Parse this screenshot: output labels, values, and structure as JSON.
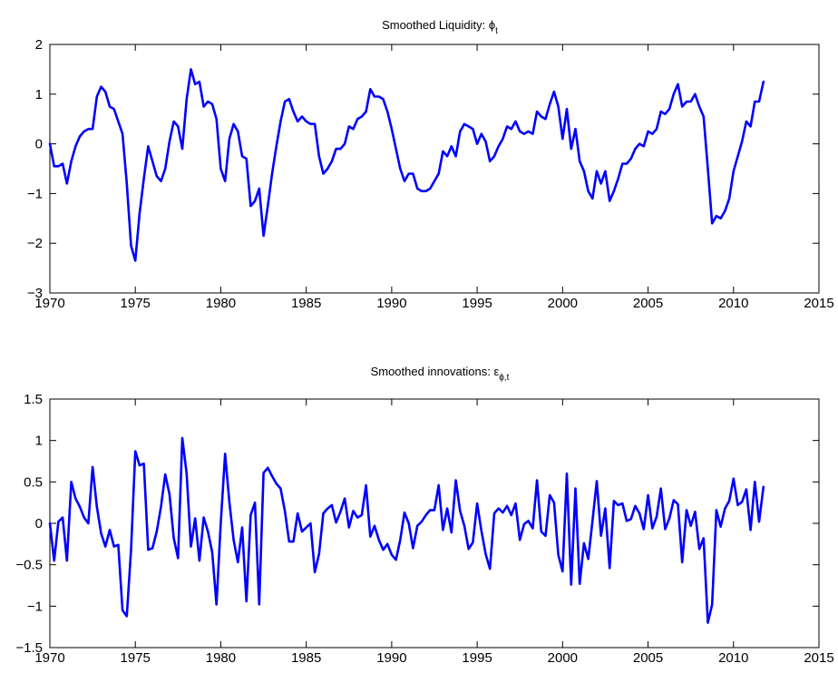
{
  "chart_data": [
    {
      "type": "line",
      "title": "Smoothed Liquidity: ",
      "title_symbol": "ϕ",
      "title_sub": "t",
      "xlabel": "",
      "ylabel": "",
      "xlim": [
        1970,
        2015
      ],
      "ylim": [
        -3,
        2
      ],
      "xticks": [
        1970,
        1975,
        1980,
        1985,
        1990,
        1995,
        2000,
        2005,
        2010,
        2015
      ],
      "xtick_labels": [
        "1970",
        "1975",
        "1980",
        "1985",
        "1990",
        "1995",
        "2000",
        "2005",
        "2010",
        "2015"
      ],
      "yticks": [
        -3,
        -2,
        -1,
        0,
        1,
        2
      ],
      "ytick_labels": [
        "−3",
        "−2",
        "−1",
        "0",
        "1",
        "2"
      ],
      "grid": false,
      "line_color": "#0000ff",
      "series": [
        {
          "x": [
            1970.0,
            1970.25,
            1970.5,
            1970.75,
            1971.0,
            1971.25,
            1971.5,
            1971.75,
            1972.0,
            1972.25,
            1972.5,
            1972.75,
            1973.0,
            1973.25,
            1973.5,
            1973.75,
            1974.0,
            1974.25,
            1974.5,
            1974.75,
            1975.0,
            1975.25,
            1975.5,
            1975.75,
            1976.0,
            1976.25,
            1976.5,
            1976.75,
            1977.0,
            1977.25,
            1977.5,
            1977.75,
            1978.0,
            1978.25,
            1978.5,
            1978.75,
            1979.0,
            1979.25,
            1979.5,
            1979.75,
            1980.0,
            1980.25,
            1980.5,
            1980.75,
            1981.0,
            1981.25,
            1981.5,
            1981.75,
            1982.0,
            1982.25,
            1982.5,
            1982.75,
            1983.0,
            1983.25,
            1983.5,
            1983.75,
            1984.0,
            1984.25,
            1984.5,
            1984.75,
            1985.0,
            1985.25,
            1985.5,
            1985.75,
            1986.0,
            1986.25,
            1986.5,
            1986.75,
            1987.0,
            1987.25,
            1987.5,
            1987.75,
            1988.0,
            1988.25,
            1988.5,
            1988.75,
            1989.0,
            1989.25,
            1989.5,
            1989.75,
            1990.0,
            1990.25,
            1990.5,
            1990.75,
            1991.0,
            1991.25,
            1991.5,
            1991.75,
            1992.0,
            1992.25,
            1992.5,
            1992.75,
            1993.0,
            1993.25,
            1993.5,
            1993.75,
            1994.0,
            1994.25,
            1994.5,
            1994.75,
            1995.0,
            1995.25,
            1995.5,
            1995.75,
            1996.0,
            1996.25,
            1996.5,
            1996.75,
            1997.0,
            1997.25,
            1997.5,
            1997.75,
            1998.0,
            1998.25,
            1998.5,
            1998.75,
            1999.0,
            1999.25,
            1999.5,
            1999.75,
            2000.0,
            2000.25,
            2000.5,
            2000.75,
            2001.0,
            2001.25,
            2001.5,
            2001.75,
            2002.0,
            2002.25,
            2002.5,
            2002.75,
            2003.0,
            2003.25,
            2003.5,
            2003.75,
            2004.0,
            2004.25,
            2004.5,
            2004.75,
            2005.0,
            2005.25,
            2005.5,
            2005.75,
            2006.0,
            2006.25,
            2006.5,
            2006.75,
            2007.0,
            2007.25,
            2007.5,
            2007.75,
            2008.0,
            2008.25,
            2008.5,
            2008.75,
            2009.0,
            2009.25,
            2009.5,
            2009.75,
            2010.0,
            2010.25,
            2010.5,
            2010.75,
            2011.0,
            2011.25,
            2011.5,
            2011.75
          ],
          "y": [
            0.0,
            -0.45,
            -0.45,
            -0.4,
            -0.8,
            -0.35,
            -0.05,
            0.15,
            0.25,
            0.3,
            0.3,
            0.95,
            1.15,
            1.05,
            0.75,
            0.7,
            0.45,
            0.2,
            -0.8,
            -2.05,
            -2.35,
            -1.4,
            -0.7,
            -0.05,
            -0.35,
            -0.65,
            -0.75,
            -0.5,
            0.05,
            0.45,
            0.35,
            -0.1,
            0.9,
            1.5,
            1.2,
            1.25,
            0.75,
            0.85,
            0.8,
            0.5,
            -0.5,
            -0.75,
            0.1,
            0.4,
            0.25,
            -0.25,
            -0.3,
            -1.25,
            -1.15,
            -0.9,
            -1.85,
            -1.25,
            -0.6,
            -0.05,
            0.45,
            0.85,
            0.9,
            0.65,
            0.45,
            0.55,
            0.45,
            0.4,
            0.4,
            -0.25,
            -0.6,
            -0.5,
            -0.35,
            -0.1,
            -0.1,
            0.0,
            0.35,
            0.3,
            0.5,
            0.55,
            0.65,
            1.1,
            0.95,
            0.95,
            0.9,
            0.65,
            0.3,
            -0.1,
            -0.5,
            -0.75,
            -0.6,
            -0.6,
            -0.9,
            -0.95,
            -0.95,
            -0.9,
            -0.75,
            -0.6,
            -0.15,
            -0.25,
            -0.05,
            -0.25,
            0.25,
            0.4,
            0.35,
            0.3,
            0.0,
            0.2,
            0.05,
            -0.35,
            -0.25,
            -0.05,
            0.1,
            0.35,
            0.3,
            0.45,
            0.25,
            0.2,
            0.25,
            0.2,
            0.65,
            0.55,
            0.5,
            0.8,
            1.05,
            0.75,
            0.1,
            0.7,
            -0.1,
            0.3,
            -0.35,
            -0.55,
            -0.95,
            -1.1,
            -0.55,
            -0.8,
            -0.55,
            -1.15,
            -0.95,
            -0.7,
            -0.4,
            -0.4,
            -0.3,
            -0.1,
            0.0,
            -0.05,
            0.25,
            0.2,
            0.3,
            0.65,
            0.6,
            0.7,
            1.0,
            1.2,
            0.75,
            0.85,
            0.85,
            1.0,
            0.75,
            0.55,
            -0.5,
            -1.6,
            -1.45,
            -1.5,
            -1.35,
            -1.1,
            -0.55,
            -0.25,
            0.05,
            0.45,
            0.35,
            0.85,
            0.85,
            1.25
          ]
        }
      ]
    },
    {
      "type": "line",
      "title": "Smoothed innovations: ",
      "title_symbol": "ε",
      "title_sub": "ϕ,t",
      "xlabel": "",
      "ylabel": "",
      "xlim": [
        1970,
        2015
      ],
      "ylim": [
        -1.5,
        1.5
      ],
      "xticks": [
        1970,
        1975,
        1980,
        1985,
        1990,
        1995,
        2000,
        2005,
        2010,
        2015
      ],
      "xtick_labels": [
        "1970",
        "1975",
        "1980",
        "1985",
        "1990",
        "1995",
        "2000",
        "2005",
        "2010",
        "2015"
      ],
      "yticks": [
        -1.5,
        -1,
        -0.5,
        0,
        0.5,
        1,
        1.5
      ],
      "ytick_labels": [
        "−1.5",
        "−1",
        "−0.5",
        "0",
        "0.5",
        "1",
        "1.5"
      ],
      "grid": false,
      "line_color": "#0000ff",
      "series": [
        {
          "x": [
            1970.0,
            1970.25,
            1970.5,
            1970.75,
            1971.0,
            1971.25,
            1971.5,
            1971.75,
            1972.0,
            1972.25,
            1972.5,
            1972.75,
            1973.0,
            1973.25,
            1973.5,
            1973.75,
            1974.0,
            1974.25,
            1974.5,
            1974.75,
            1975.0,
            1975.25,
            1975.5,
            1975.75,
            1976.0,
            1976.25,
            1976.5,
            1976.75,
            1977.0,
            1977.25,
            1977.5,
            1977.75,
            1978.0,
            1978.25,
            1978.5,
            1978.75,
            1979.0,
            1979.25,
            1979.5,
            1979.75,
            1980.0,
            1980.25,
            1980.5,
            1980.75,
            1981.0,
            1981.25,
            1981.5,
            1981.75,
            1982.0,
            1982.25,
            1982.5,
            1982.75,
            1983.0,
            1983.25,
            1983.5,
            1983.75,
            1984.0,
            1984.25,
            1984.5,
            1984.75,
            1985.0,
            1985.25,
            1985.5,
            1985.75,
            1986.0,
            1986.25,
            1986.5,
            1986.75,
            1987.0,
            1987.25,
            1987.5,
            1987.75,
            1988.0,
            1988.25,
            1988.5,
            1988.75,
            1989.0,
            1989.25,
            1989.5,
            1989.75,
            1990.0,
            1990.25,
            1990.5,
            1990.75,
            1991.0,
            1991.25,
            1991.5,
            1991.75,
            1992.0,
            1992.25,
            1992.5,
            1992.75,
            1993.0,
            1993.25,
            1993.5,
            1993.75,
            1994.0,
            1994.25,
            1994.5,
            1994.75,
            1995.0,
            1995.25,
            1995.5,
            1995.75,
            1996.0,
            1996.25,
            1996.5,
            1996.75,
            1997.0,
            1997.25,
            1997.5,
            1997.75,
            1998.0,
            1998.25,
            1998.5,
            1998.75,
            1999.0,
            1999.25,
            1999.5,
            1999.75,
            2000.0,
            2000.25,
            2000.5,
            2000.75,
            2001.0,
            2001.25,
            2001.5,
            2001.75,
            2002.0,
            2002.25,
            2002.5,
            2002.75,
            2003.0,
            2003.25,
            2003.5,
            2003.75,
            2004.0,
            2004.25,
            2004.5,
            2004.75,
            2005.0,
            2005.25,
            2005.5,
            2005.75,
            2006.0,
            2006.25,
            2006.5,
            2006.75,
            2007.0,
            2007.25,
            2007.5,
            2007.75,
            2008.0,
            2008.25,
            2008.5,
            2008.75,
            2009.0,
            2009.25,
            2009.5,
            2009.75,
            2010.0,
            2010.25,
            2010.5,
            2010.75,
            2011.0,
            2011.25,
            2011.5,
            2011.75
          ],
          "y": [
            0.0,
            -0.45,
            0.02,
            0.07,
            -0.45,
            0.5,
            0.3,
            0.2,
            0.07,
            0.0,
            0.68,
            0.2,
            -0.12,
            -0.28,
            -0.08,
            -0.28,
            -0.26,
            -1.05,
            -1.12,
            -0.32,
            0.87,
            0.7,
            0.72,
            -0.32,
            -0.3,
            -0.1,
            0.2,
            0.59,
            0.35,
            -0.18,
            -0.42,
            1.03,
            0.6,
            -0.28,
            0.06,
            -0.45,
            0.07,
            -0.1,
            -0.35,
            -0.98,
            0.0,
            0.84,
            0.26,
            -0.2,
            -0.47,
            -0.05,
            -0.94,
            0.1,
            0.25,
            -0.98,
            0.61,
            0.67,
            0.57,
            0.48,
            0.42,
            0.15,
            -0.22,
            -0.22,
            0.12,
            -0.1,
            -0.05,
            0.0,
            -0.59,
            -0.37,
            0.12,
            0.18,
            0.22,
            0.01,
            0.14,
            0.3,
            -0.05,
            0.15,
            0.07,
            0.1,
            0.46,
            -0.16,
            -0.03,
            -0.2,
            -0.32,
            -0.25,
            -0.38,
            -0.44,
            -0.2,
            0.13,
            0.0,
            -0.3,
            -0.03,
            0.02,
            0.1,
            0.16,
            0.16,
            0.46,
            -0.08,
            0.18,
            -0.11,
            0.52,
            0.15,
            -0.03,
            -0.31,
            -0.23,
            0.24,
            -0.09,
            -0.37,
            -0.55,
            0.12,
            0.18,
            0.13,
            0.21,
            0.1,
            0.24,
            -0.2,
            -0.01,
            0.03,
            -0.06,
            0.52,
            -0.1,
            -0.15,
            0.34,
            0.25,
            -0.38,
            -0.58,
            0.6,
            -0.74,
            0.42,
            -0.73,
            -0.24,
            -0.43,
            0.03,
            0.51,
            -0.15,
            0.18,
            -0.54,
            0.27,
            0.22,
            0.24,
            0.03,
            0.05,
            0.21,
            0.12,
            -0.07,
            0.34,
            -0.06,
            0.08,
            0.42,
            -0.07,
            0.06,
            0.28,
            0.23,
            -0.47,
            0.16,
            -0.03,
            0.14,
            -0.31,
            -0.18,
            -1.2,
            -0.98,
            0.16,
            -0.04,
            0.18,
            0.27,
            0.54,
            0.22,
            0.26,
            0.41,
            -0.08,
            0.5,
            0.02,
            0.44
          ]
        }
      ]
    }
  ]
}
